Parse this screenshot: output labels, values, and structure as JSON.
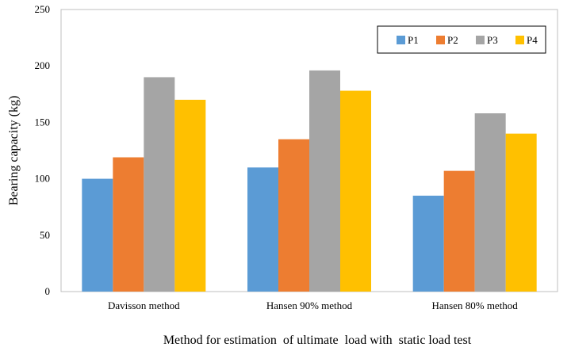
{
  "chart_data": {
    "type": "bar",
    "categories": [
      "Davisson method",
      "Hansen 90% method",
      "Hansen 80% method"
    ],
    "series": [
      {
        "name": "P1",
        "color": "#5b9bd5",
        "values": [
          100,
          110,
          85
        ]
      },
      {
        "name": "P2",
        "color": "#ed7d31",
        "values": [
          119,
          135,
          107
        ]
      },
      {
        "name": "P3",
        "color": "#a5a5a5",
        "values": [
          190,
          196,
          158
        ]
      },
      {
        "name": "P4",
        "color": "#ffc000",
        "values": [
          170,
          178,
          140
        ]
      }
    ],
    "xlabel": "Method for estimation  of ultimate  load with  static load test",
    "ylabel": "Bearing  capacity  (kg)",
    "ylim": [
      0,
      250
    ],
    "yticks": [
      0,
      50,
      100,
      150,
      200,
      250
    ],
    "grid": false,
    "legend": "top-right"
  }
}
